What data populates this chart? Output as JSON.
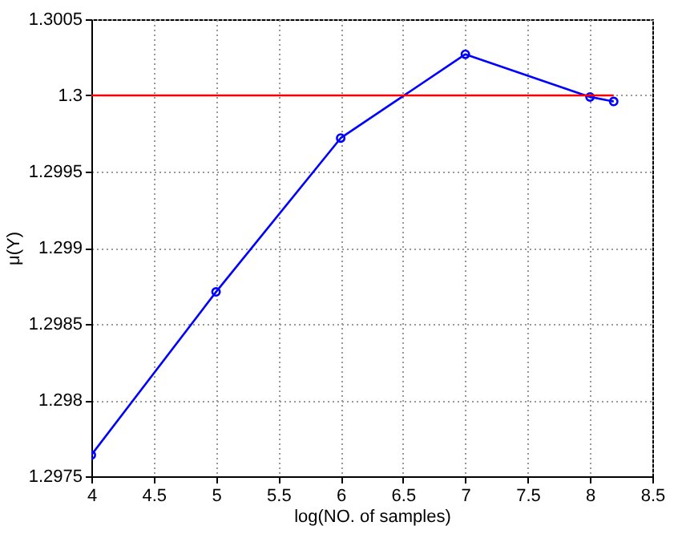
{
  "chart_data": {
    "type": "line",
    "xlabel": "log(NO. of samples)",
    "ylabel": "μ(Y)",
    "xlim": [
      4,
      8.5
    ],
    "xticks": [
      4,
      4.5,
      5,
      5.5,
      6,
      6.5,
      7,
      7.5,
      8,
      8.5
    ],
    "ylim": [
      1.2975,
      1.3005
    ],
    "yticks": [
      1.2975,
      1.298,
      1.2985,
      1.299,
      1.2995,
      1.3,
      1.3005
    ],
    "grid": true,
    "series": [
      {
        "color": "#0000ff",
        "marker": "circle",
        "x": [
          4,
          5,
          6,
          7,
          8,
          8.19
        ],
        "values": [
          1.29764,
          1.29871,
          1.29972,
          1.30027,
          1.29999,
          1.29996
        ]
      },
      {
        "color": "#ff0000",
        "marker": "none",
        "x": [
          4,
          8.19
        ],
        "values": [
          1.3,
          1.3
        ]
      }
    ]
  }
}
